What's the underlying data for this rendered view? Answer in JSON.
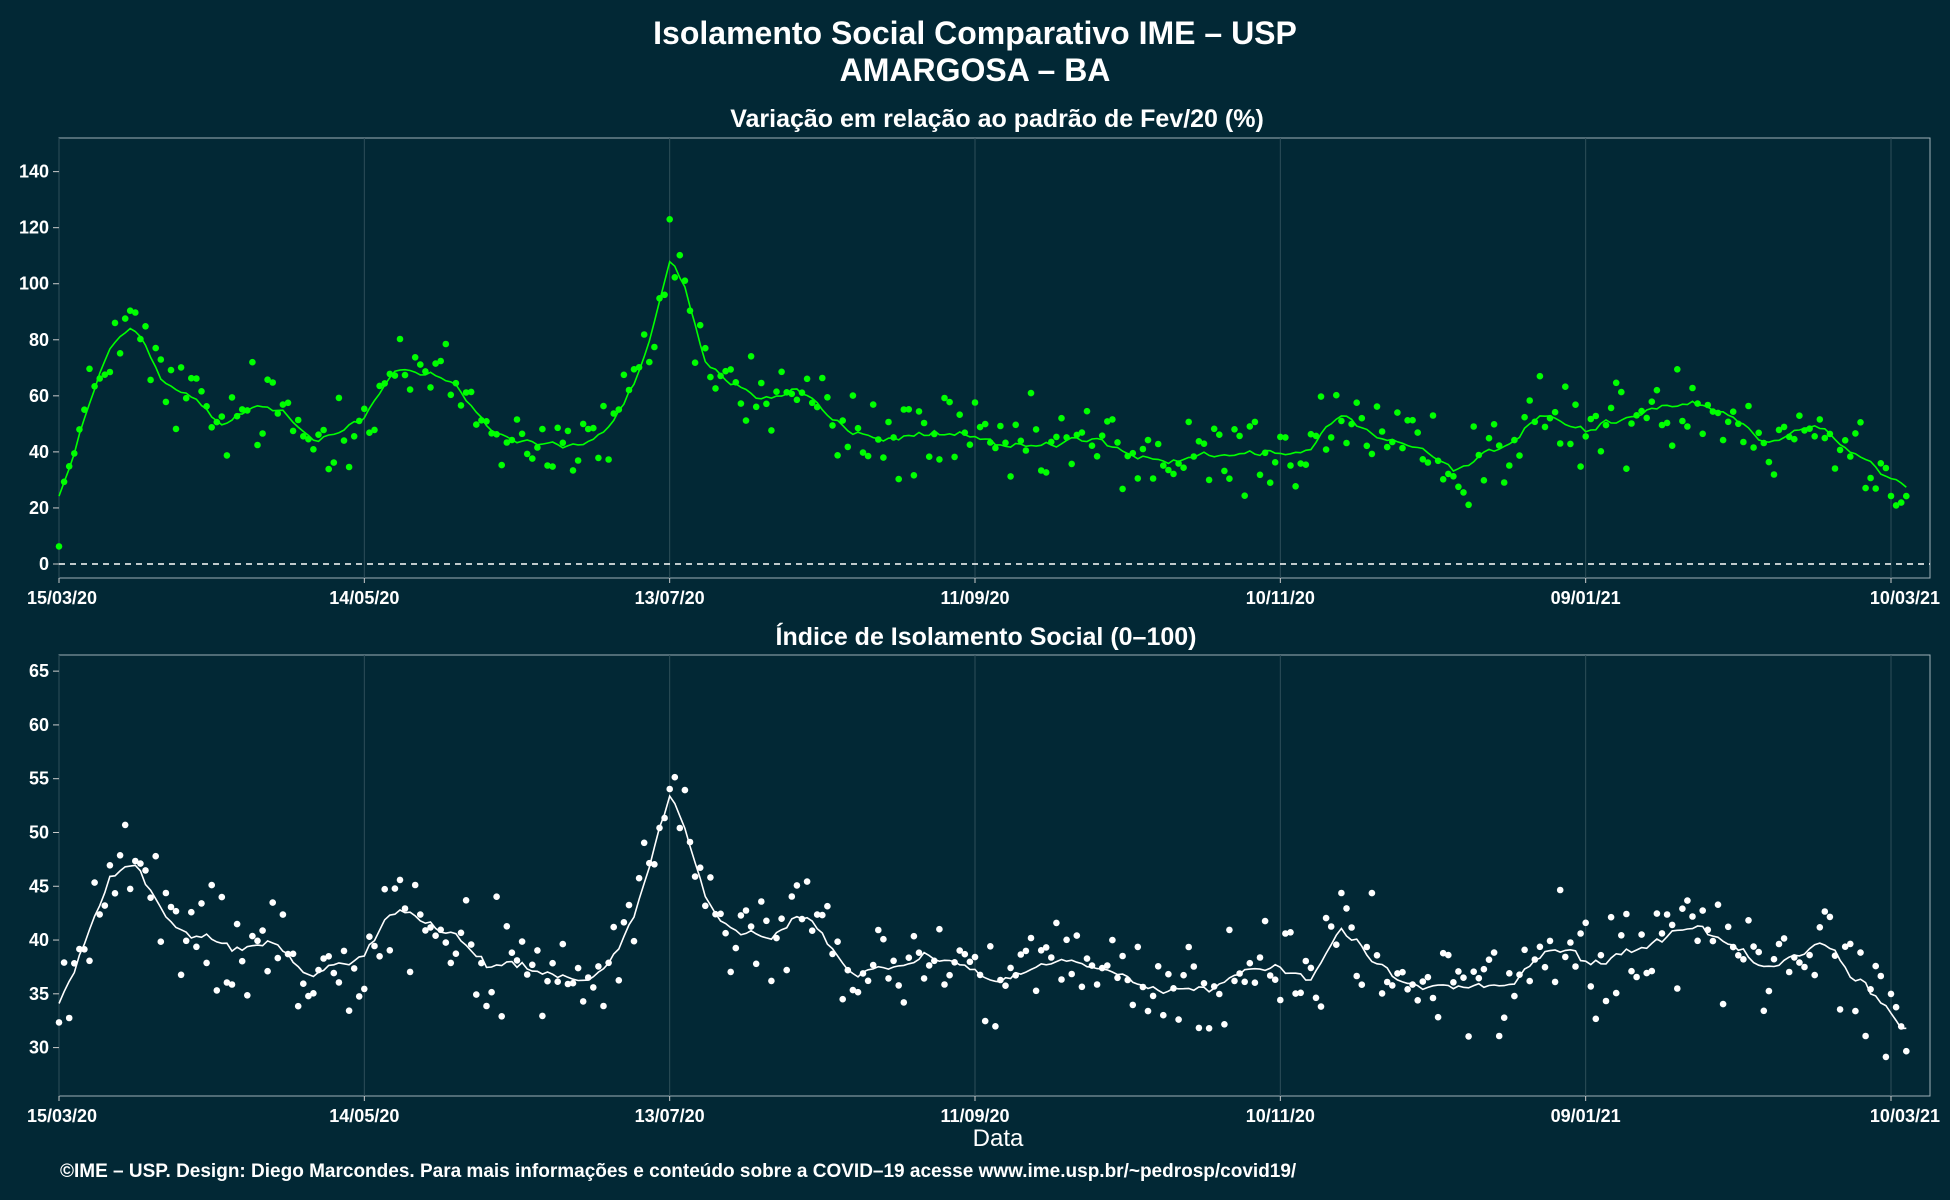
{
  "title": "Isolamento Social Comparativo IME – USP",
  "subtitle": "AMARGOSA – BA",
  "caption": "©IME – USP. Design: Diego Marcondes. Para mais informações e conteúdo sobre a COVID–19 acesse www.ime.usp.br/~pedrosp/covid19/",
  "colors": {
    "background": "#022835",
    "series1": "#00ff00",
    "series2": "#ffffff"
  },
  "chart_data": [
    {
      "type": "scatter",
      "title": "Variação em relação ao padrão de Fev/20 (%)",
      "xlabel": "",
      "ylabel": "",
      "x_tick_labels": [
        "15/03/20",
        "14/05/20",
        "13/07/20",
        "11/09/20",
        "10/11/20",
        "09/01/21",
        "10/03/21"
      ],
      "x_range": [
        "15/03/20",
        "10/03/21"
      ],
      "y_ticks": [
        0,
        20,
        40,
        60,
        80,
        100,
        120,
        140
      ],
      "ylim": [
        -5,
        152
      ],
      "reference_line": 0,
      "grid": true,
      "points_description": "daily values with 7-day moving average line",
      "anchors": [
        [
          "15/03/20",
          21
        ],
        [
          "20/03/20",
          50
        ],
        [
          "25/03/20",
          80
        ],
        [
          "30/03/20",
          84
        ],
        [
          "04/04/20",
          64
        ],
        [
          "10/04/20",
          58
        ],
        [
          "16/04/20",
          48
        ],
        [
          "22/04/20",
          56
        ],
        [
          "28/04/20",
          53
        ],
        [
          "04/05/20",
          44
        ],
        [
          "10/05/20",
          52
        ],
        [
          "14/05/20",
          55
        ],
        [
          "20/05/20",
          70
        ],
        [
          "26/05/20",
          66
        ],
        [
          "01/06/20",
          63
        ],
        [
          "07/06/20",
          50
        ],
        [
          "13/06/20",
          44
        ],
        [
          "19/06/20",
          45
        ],
        [
          "25/06/20",
          41
        ],
        [
          "01/07/20",
          47
        ],
        [
          "06/07/20",
          60
        ],
        [
          "10/07/20",
          85
        ],
        [
          "13/07/20",
          115
        ],
        [
          "16/07/20",
          100
        ],
        [
          "20/07/20",
          70
        ],
        [
          "26/07/20",
          64
        ],
        [
          "01/08/20",
          58
        ],
        [
          "07/08/20",
          63
        ],
        [
          "13/08/20",
          52
        ],
        [
          "19/08/20",
          46
        ],
        [
          "25/08/20",
          44
        ],
        [
          "01/09/20",
          47
        ],
        [
          "11/09/20",
          42
        ],
        [
          "21/09/20",
          40
        ],
        [
          "01/10/20",
          44
        ],
        [
          "11/10/20",
          40
        ],
        [
          "21/10/20",
          36
        ],
        [
          "01/11/20",
          38
        ],
        [
          "10/11/20",
          42
        ],
        [
          "16/11/20",
          40
        ],
        [
          "22/11/20",
          56
        ],
        [
          "28/11/20",
          45
        ],
        [
          "05/12/20",
          38
        ],
        [
          "15/12/20",
          37
        ],
        [
          "25/12/20",
          44
        ],
        [
          "01/01/21",
          52
        ],
        [
          "09/01/21",
          48
        ],
        [
          "16/01/21",
          50
        ],
        [
          "23/01/21",
          58
        ],
        [
          "30/01/21",
          60
        ],
        [
          "06/02/21",
          56
        ],
        [
          "13/02/21",
          44
        ],
        [
          "20/02/21",
          48
        ],
        [
          "25/02/21",
          52
        ],
        [
          "01/03/21",
          40
        ],
        [
          "05/03/21",
          38
        ],
        [
          "10/03/21",
          34
        ],
        [
          "13/03/21",
          32
        ]
      ],
      "series": [
        {
          "name": "",
          "color": "#00ff00"
        }
      ]
    },
    {
      "type": "scatter",
      "title": "Índice de Isolamento Social (0–100)",
      "xlabel": "Data",
      "ylabel": "",
      "x_tick_labels": [
        "15/03/20",
        "14/05/20",
        "13/07/20",
        "11/09/20",
        "10/11/20",
        "09/01/21",
        "10/03/21"
      ],
      "x_range": [
        "15/03/20",
        "10/03/21"
      ],
      "y_ticks": [
        30,
        35,
        40,
        45,
        50,
        55,
        60,
        65
      ],
      "ylim": [
        25.5,
        66.5
      ],
      "grid": true,
      "anchors": [
        [
          "15/03/20",
          33
        ],
        [
          "20/03/20",
          40
        ],
        [
          "25/03/20",
          46
        ],
        [
          "30/03/20",
          47
        ],
        [
          "04/04/20",
          42
        ],
        [
          "10/04/20",
          40
        ],
        [
          "16/04/20",
          40
        ],
        [
          "22/04/20",
          40
        ],
        [
          "28/04/20",
          39
        ],
        [
          "04/05/20",
          37
        ],
        [
          "10/05/20",
          39
        ],
        [
          "14/05/20",
          40
        ],
        [
          "20/05/20",
          43
        ],
        [
          "26/05/20",
          42
        ],
        [
          "01/06/20",
          41
        ],
        [
          "07/06/20",
          38
        ],
        [
          "13/06/20",
          37
        ],
        [
          "19/06/20",
          37
        ],
        [
          "25/06/20",
          36
        ],
        [
          "01/07/20",
          38
        ],
        [
          "06/07/20",
          41
        ],
        [
          "10/07/20",
          48
        ],
        [
          "13/07/20",
          55
        ],
        [
          "16/07/20",
          50
        ],
        [
          "20/07/20",
          43
        ],
        [
          "26/07/20",
          41
        ],
        [
          "01/08/20",
          40
        ],
        [
          "07/08/20",
          42
        ],
        [
          "13/08/20",
          39
        ],
        [
          "19/08/20",
          37
        ],
        [
          "25/08/20",
          37
        ],
        [
          "01/09/20",
          39
        ],
        [
          "11/09/20",
          37
        ],
        [
          "21/09/20",
          36
        ],
        [
          "01/10/20",
          38
        ],
        [
          "11/10/20",
          36
        ],
        [
          "21/10/20",
          35
        ],
        [
          "01/11/20",
          37
        ],
        [
          "10/11/20",
          37
        ],
        [
          "16/11/20",
          36
        ],
        [
          "22/11/20",
          41
        ],
        [
          "28/11/20",
          38
        ],
        [
          "05/12/20",
          36
        ],
        [
          "15/12/20",
          35
        ],
        [
          "25/12/20",
          36
        ],
        [
          "01/01/21",
          39
        ],
        [
          "09/01/21",
          38
        ],
        [
          "16/01/21",
          39
        ],
        [
          "23/01/21",
          40
        ],
        [
          "30/01/21",
          41
        ],
        [
          "06/02/21",
          40
        ],
        [
          "13/02/21",
          37
        ],
        [
          "20/02/21",
          39
        ],
        [
          "25/02/21",
          40
        ],
        [
          "01/03/21",
          37
        ],
        [
          "05/03/21",
          36
        ],
        [
          "10/03/21",
          33
        ],
        [
          "13/03/21",
          31
        ]
      ],
      "series": [
        {
          "name": "",
          "color": "#ffffff"
        }
      ]
    }
  ]
}
